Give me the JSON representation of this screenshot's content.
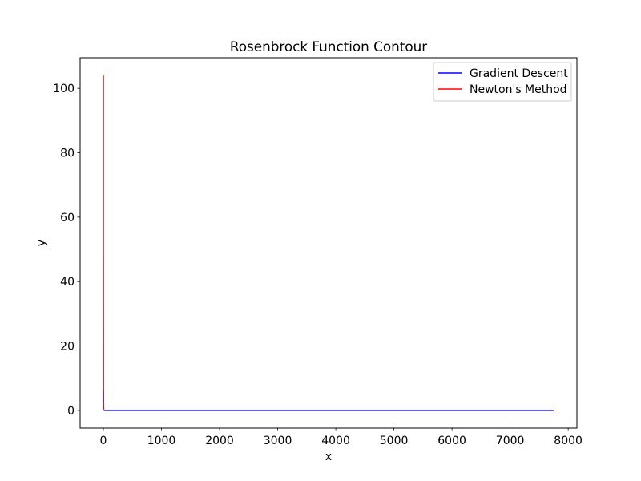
{
  "chart_data": {
    "type": "line",
    "title": "Rosenbrock Function Contour",
    "xlabel": "x",
    "ylabel": "y",
    "xlim": [
      -400,
      8150
    ],
    "ylim": [
      -5.5,
      109.5
    ],
    "xticks": [
      0,
      1000,
      2000,
      3000,
      4000,
      5000,
      6000,
      7000,
      8000
    ],
    "yticks": [
      0,
      20,
      40,
      60,
      80,
      100
    ],
    "grid": false,
    "legend_position": "top-right",
    "series": [
      {
        "name": "Gradient Descent",
        "color": "#0000ff",
        "x": [
          0,
          0,
          5,
          20,
          100,
          1000,
          3000,
          7750
        ],
        "y": [
          6,
          3,
          0.2,
          0,
          0,
          0,
          0,
          0
        ]
      },
      {
        "name": "Newton's Method",
        "color": "#ff0000",
        "x": [
          0,
          0,
          2,
          5
        ],
        "y": [
          104,
          50,
          5,
          0
        ]
      }
    ]
  }
}
